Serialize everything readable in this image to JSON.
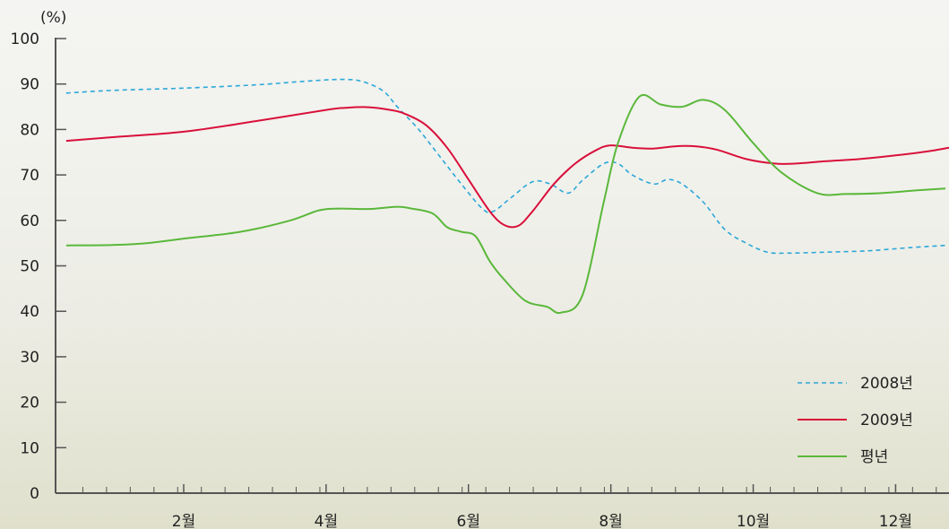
{
  "chart_data": {
    "type": "line",
    "y_unit_label": "(%)",
    "ylim": [
      0,
      100
    ],
    "y_ticks": [
      0,
      10,
      20,
      30,
      40,
      50,
      60,
      70,
      80,
      90,
      100
    ],
    "x_tick_labels": [
      {
        "x": 2,
        "label": "2월"
      },
      {
        "x": 4,
        "label": "4월"
      },
      {
        "x": 6,
        "label": "6월"
      },
      {
        "x": 8,
        "label": "8월"
      },
      {
        "x": 10,
        "label": "10월"
      },
      {
        "x": 12,
        "label": "12월"
      }
    ],
    "xlim": [
      0.2,
      12.75
    ],
    "minor_tick_step": 0.333,
    "grid": false,
    "legend_position": "bottom-right",
    "series": [
      {
        "name": "2008년",
        "color": "#2ba8d8",
        "dash": true,
        "points": [
          [
            0.35,
            88
          ],
          [
            1.0,
            88.6
          ],
          [
            2.0,
            89.1
          ],
          [
            3.0,
            89.8
          ],
          [
            3.7,
            90.6
          ],
          [
            4.2,
            91
          ],
          [
            4.5,
            90.6
          ],
          [
            4.8,
            88.5
          ],
          [
            5.0,
            85
          ],
          [
            5.3,
            80
          ],
          [
            5.6,
            74
          ],
          [
            5.9,
            68
          ],
          [
            6.2,
            62.5
          ],
          [
            6.35,
            62
          ],
          [
            6.6,
            65
          ],
          [
            6.9,
            68.5
          ],
          [
            7.15,
            68
          ],
          [
            7.4,
            66
          ],
          [
            7.6,
            68.8
          ],
          [
            7.9,
            72.5
          ],
          [
            8.1,
            72.5
          ],
          [
            8.3,
            70
          ],
          [
            8.6,
            68
          ],
          [
            8.8,
            69
          ],
          [
            9.0,
            68
          ],
          [
            9.3,
            64
          ],
          [
            9.6,
            58
          ],
          [
            9.9,
            55
          ],
          [
            10.2,
            53
          ],
          [
            10.5,
            52.8
          ],
          [
            11.0,
            53
          ],
          [
            11.6,
            53.3
          ],
          [
            12.2,
            54
          ],
          [
            12.7,
            54.5
          ]
        ]
      },
      {
        "name": "2009년",
        "color": "#d9103a",
        "dash": false,
        "points": [
          [
            0.35,
            77.5
          ],
          [
            1.0,
            78.3
          ],
          [
            2.0,
            79.5
          ],
          [
            3.0,
            81.8
          ],
          [
            4.0,
            84.3
          ],
          [
            4.3,
            84.8
          ],
          [
            4.6,
            84.9
          ],
          [
            4.9,
            84.3
          ],
          [
            5.1,
            83.5
          ],
          [
            5.4,
            81
          ],
          [
            5.7,
            76
          ],
          [
            6.0,
            69
          ],
          [
            6.3,
            62
          ],
          [
            6.5,
            59
          ],
          [
            6.7,
            58.8
          ],
          [
            6.9,
            62
          ],
          [
            7.2,
            68
          ],
          [
            7.5,
            72.5
          ],
          [
            7.8,
            75.5
          ],
          [
            8.0,
            76.5
          ],
          [
            8.3,
            76
          ],
          [
            8.6,
            75.8
          ],
          [
            8.9,
            76.3
          ],
          [
            9.2,
            76.3
          ],
          [
            9.5,
            75.5
          ],
          [
            9.9,
            73.5
          ],
          [
            10.3,
            72.5
          ],
          [
            10.6,
            72.5
          ],
          [
            11.0,
            73
          ],
          [
            11.5,
            73.5
          ],
          [
            12.0,
            74.3
          ],
          [
            12.5,
            75.3
          ],
          [
            12.75,
            76
          ]
        ]
      },
      {
        "name": "평년",
        "color": "#5ab83a",
        "dash": false,
        "points": [
          [
            0.35,
            54.5
          ],
          [
            1.0,
            54.6
          ],
          [
            1.5,
            55
          ],
          [
            2.0,
            56
          ],
          [
            2.8,
            57.5
          ],
          [
            3.5,
            60
          ],
          [
            3.9,
            62.2
          ],
          [
            4.2,
            62.6
          ],
          [
            4.6,
            62.5
          ],
          [
            5.0,
            63
          ],
          [
            5.2,
            62.6
          ],
          [
            5.5,
            61.5
          ],
          [
            5.7,
            58.5
          ],
          [
            5.9,
            57.5
          ],
          [
            6.1,
            56.5
          ],
          [
            6.3,
            51
          ],
          [
            6.5,
            47
          ],
          [
            6.8,
            42.3
          ],
          [
            7.1,
            41
          ],
          [
            7.3,
            39.7
          ],
          [
            7.6,
            43.5
          ],
          [
            7.9,
            64
          ],
          [
            8.1,
            77
          ],
          [
            8.4,
            87.2
          ],
          [
            8.7,
            85.5
          ],
          [
            9.0,
            85
          ],
          [
            9.3,
            86.5
          ],
          [
            9.6,
            84.3
          ],
          [
            10.0,
            77
          ],
          [
            10.4,
            70.5
          ],
          [
            10.9,
            66
          ],
          [
            11.3,
            65.8
          ],
          [
            11.8,
            66
          ],
          [
            12.3,
            66.6
          ],
          [
            12.7,
            67
          ]
        ]
      }
    ]
  }
}
